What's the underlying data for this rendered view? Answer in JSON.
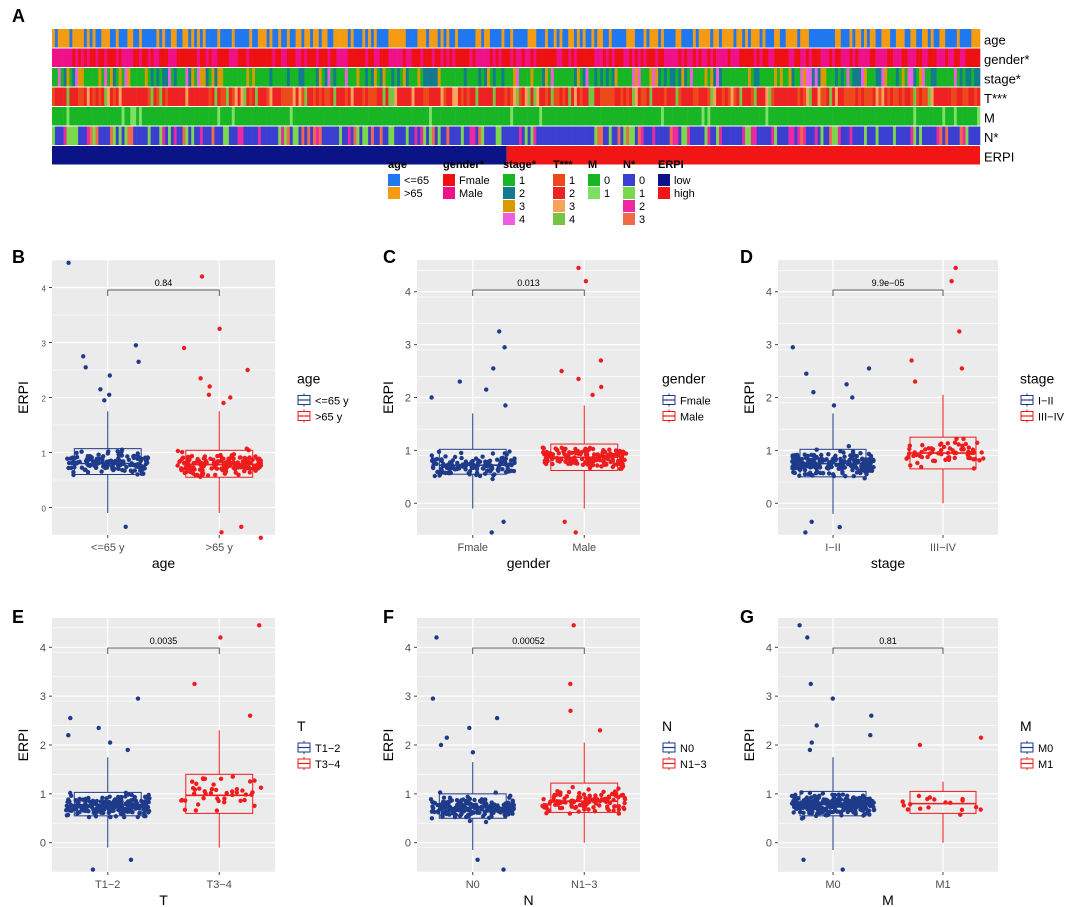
{
  "colors": {
    "blue": "#1e3a8a",
    "red": "#ee1c1c",
    "panel_bg": "#ebebeb",
    "grid": "#ffffff"
  },
  "heatmap": {
    "panel_label": "A",
    "rows": [
      {
        "name": "age",
        "palette": [
          "#1f78f0",
          "#f59b12"
        ]
      },
      {
        "name": "gender*",
        "palette": [
          "#ee1111",
          "#ee1189"
        ]
      },
      {
        "name": "stage*",
        "palette": [
          "#18b624",
          "#127b8f",
          "#d99a00",
          "#f05ee0"
        ]
      },
      {
        "name": "T***",
        "palette": [
          "#ec4a1a",
          "#ee2222",
          "#f7a35a",
          "#76c441"
        ]
      },
      {
        "name": "M",
        "palette": [
          "#18b624",
          "#7de063"
        ]
      },
      {
        "name": "N*",
        "palette": [
          "#3b3fd1",
          "#7ad94a",
          "#ee28a0",
          "#f06a4a"
        ]
      },
      {
        "name": "ERPI",
        "palette": [
          "#0b1487",
          "#f21515"
        ]
      }
    ],
    "legend": [
      {
        "title": "age",
        "items": [
          {
            "label": "<=65",
            "color": "#1f78f0"
          },
          {
            "label": ">65",
            "color": "#f59b12"
          }
        ]
      },
      {
        "title": "gender*",
        "items": [
          {
            "label": "Fmale",
            "color": "#ee1111"
          },
          {
            "label": "Male",
            "color": "#ee1189"
          }
        ]
      },
      {
        "title": "stage*",
        "items": [
          {
            "label": "1",
            "color": "#18b624"
          },
          {
            "label": "2",
            "color": "#127b8f"
          },
          {
            "label": "3",
            "color": "#d99a00"
          },
          {
            "label": "4",
            "color": "#f05ee0"
          }
        ]
      },
      {
        "title": "T***",
        "items": [
          {
            "label": "1",
            "color": "#ec4a1a"
          },
          {
            "label": "2",
            "color": "#ee2222"
          },
          {
            "label": "3",
            "color": "#f7a35a"
          },
          {
            "label": "4",
            "color": "#76c441"
          }
        ]
      },
      {
        "title": "M",
        "items": [
          {
            "label": "0",
            "color": "#18b624"
          },
          {
            "label": "1",
            "color": "#7de063"
          }
        ]
      },
      {
        "title": "N*",
        "items": [
          {
            "label": "0",
            "color": "#3b3fd1"
          },
          {
            "label": "1",
            "color": "#7ad94a"
          },
          {
            "label": "2",
            "color": "#ee28a0"
          },
          {
            "label": "3",
            "color": "#f06a4a"
          }
        ]
      },
      {
        "title": "ERPI",
        "items": [
          {
            "label": "low",
            "color": "#0b1487"
          },
          {
            "label": "high",
            "color": "#f21515"
          }
        ]
      }
    ]
  },
  "chart_data": [
    {
      "panel": "B",
      "type": "boxplot",
      "xlabel": "age",
      "ylabel": "ERPI",
      "ylim": [
        -0.5,
        4.5
      ],
      "yticks": [
        0,
        1,
        2,
        3,
        4
      ],
      "categories": [
        "<=65 y",
        ">65 y"
      ],
      "legend_title": "age",
      "legend_labels": [
        "<=65 y",
        ">65 y"
      ],
      "pvalue": "0.84",
      "boxes": [
        {
          "q1": 0.6,
          "median": 0.8,
          "q3": 1.07,
          "lower": -0.1,
          "upper": 1.75,
          "n": 150,
          "outliers": [
            1.95,
            2.05,
            2.15,
            2.4,
            2.55,
            2.65,
            2.75,
            2.95,
            4.45,
            -0.35
          ]
        },
        {
          "q1": 0.55,
          "median": 0.78,
          "q3": 1.04,
          "lower": -0.1,
          "upper": 1.75,
          "n": 180,
          "outliers": [
            1.9,
            2.0,
            2.05,
            2.2,
            2.35,
            2.5,
            2.9,
            3.25,
            4.2,
            -0.35,
            -0.45,
            -0.55
          ]
        }
      ]
    },
    {
      "panel": "C",
      "type": "boxplot",
      "xlabel": "gender",
      "ylabel": "ERPI",
      "ylim": [
        -0.6,
        4.6
      ],
      "yticks": [
        0,
        1,
        2,
        3,
        4
      ],
      "categories": [
        "Fmale",
        "Male"
      ],
      "legend_title": "gender",
      "legend_labels": [
        "Fmale",
        "Male"
      ],
      "pvalue": "0.013",
      "boxes": [
        {
          "q1": 0.55,
          "median": 0.72,
          "q3": 1.02,
          "lower": -0.1,
          "upper": 1.7,
          "n": 150,
          "outliers": [
            1.85,
            2.0,
            2.15,
            2.3,
            2.55,
            2.95,
            3.25,
            -0.35,
            -0.55
          ]
        },
        {
          "q1": 0.62,
          "median": 0.87,
          "q3": 1.12,
          "lower": -0.1,
          "upper": 1.85,
          "n": 165,
          "outliers": [
            2.05,
            2.2,
            2.35,
            2.5,
            2.7,
            4.2,
            4.45,
            -0.35,
            -0.55
          ]
        }
      ]
    },
    {
      "panel": "D",
      "type": "boxplot",
      "xlabel": "stage",
      "ylabel": "ERPI",
      "ylim": [
        -0.6,
        4.6
      ],
      "yticks": [
        0,
        1,
        2,
        3,
        4
      ],
      "categories": [
        "I−II",
        "III−IV"
      ],
      "legend_title": "stage",
      "legend_labels": [
        "I−II",
        "III−IV"
      ],
      "pvalue": "9.9e−05",
      "boxes": [
        {
          "q1": 0.5,
          "median": 0.75,
          "q3": 1.02,
          "lower": -0.2,
          "upper": 1.7,
          "n": 230,
          "outliers": [
            1.85,
            2.0,
            2.1,
            2.25,
            2.45,
            2.55,
            2.95,
            -0.35,
            -0.45,
            -0.55
          ]
        },
        {
          "q1": 0.65,
          "median": 0.95,
          "q3": 1.25,
          "lower": 0.0,
          "upper": 2.05,
          "n": 75,
          "outliers": [
            2.3,
            2.55,
            2.7,
            3.25,
            4.2,
            4.45
          ]
        }
      ]
    },
    {
      "panel": "E",
      "type": "boxplot",
      "xlabel": "T",
      "ylabel": "ERPI",
      "ylim": [
        -0.6,
        4.6
      ],
      "yticks": [
        0,
        1,
        2,
        3,
        4
      ],
      "categories": [
        "T1−2",
        "T3−4"
      ],
      "legend_title": "T",
      "legend_labels": [
        "T1−2",
        "T3−4"
      ],
      "pvalue": "0.0035",
      "boxes": [
        {
          "q1": 0.55,
          "median": 0.77,
          "q3": 1.03,
          "lower": -0.1,
          "upper": 1.75,
          "n": 230,
          "outliers": [
            1.9,
            2.05,
            2.2,
            2.35,
            2.55,
            2.95,
            -0.35,
            -0.55
          ]
        },
        {
          "q1": 0.6,
          "median": 0.97,
          "q3": 1.4,
          "lower": -0.1,
          "upper": 2.3,
          "n": 48,
          "outliers": [
            2.6,
            3.25,
            4.2,
            4.45
          ]
        }
      ]
    },
    {
      "panel": "F",
      "type": "boxplot",
      "xlabel": "N",
      "ylabel": "ERPI",
      "ylim": [
        -0.6,
        4.6
      ],
      "yticks": [
        0,
        1,
        2,
        3,
        4
      ],
      "categories": [
        "N0",
        "N1−3"
      ],
      "legend_title": "N",
      "legend_labels": [
        "N0",
        "N1−3"
      ],
      "pvalue": "0.00052",
      "boxes": [
        {
          "q1": 0.5,
          "median": 0.72,
          "q3": 1.0,
          "lower": -0.15,
          "upper": 1.65,
          "n": 200,
          "outliers": [
            1.85,
            2.0,
            2.15,
            2.35,
            2.55,
            2.95,
            4.2,
            -0.35,
            -0.55
          ]
        },
        {
          "q1": 0.62,
          "median": 0.85,
          "q3": 1.22,
          "lower": 0.0,
          "upper": 2.05,
          "n": 115,
          "outliers": [
            2.3,
            2.7,
            3.25,
            4.45
          ]
        }
      ]
    },
    {
      "panel": "G",
      "type": "boxplot",
      "xlabel": "M",
      "ylabel": "ERPI",
      "ylim": [
        -0.6,
        4.6
      ],
      "yticks": [
        0,
        1,
        2,
        3,
        4
      ],
      "categories": [
        "M0",
        "M1"
      ],
      "legend_title": "M",
      "legend_labels": [
        "M0",
        "M1"
      ],
      "pvalue": "0.81",
      "boxes": [
        {
          "q1": 0.55,
          "median": 0.78,
          "q3": 1.05,
          "lower": -0.15,
          "upper": 1.75,
          "n": 280,
          "outliers": [
            1.9,
            2.05,
            2.2,
            2.4,
            2.6,
            2.95,
            3.25,
            4.2,
            4.45,
            -0.35,
            -0.55
          ]
        },
        {
          "q1": 0.6,
          "median": 0.8,
          "q3": 1.05,
          "lower": 0.0,
          "upper": 1.25,
          "n": 20,
          "outliers": [
            2.0,
            2.15
          ]
        }
      ]
    }
  ]
}
